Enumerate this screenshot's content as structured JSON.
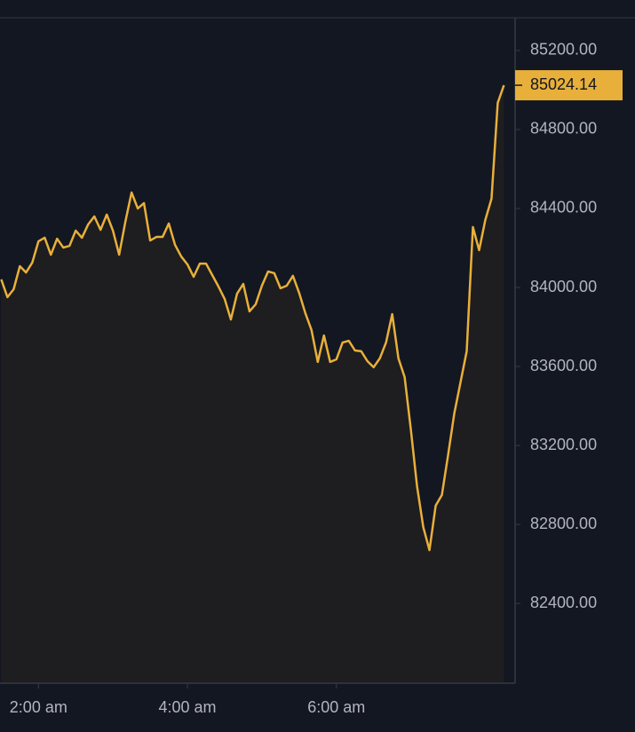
{
  "chart_data": {
    "type": "line",
    "color": "#e8b03a",
    "x": [
      90,
      95,
      100,
      105,
      110,
      115,
      120,
      125,
      130,
      135,
      140,
      145,
      150,
      155,
      160,
      165,
      170,
      175,
      180,
      185,
      190,
      195,
      200,
      205,
      210,
      215,
      220,
      225,
      230,
      235,
      240,
      245,
      250,
      255,
      260,
      265,
      270,
      275,
      280,
      285,
      290,
      295,
      300,
      305,
      310,
      315,
      320,
      325,
      330,
      335,
      340,
      345,
      350,
      355,
      360,
      365,
      370,
      375,
      380,
      385,
      390,
      395,
      400,
      405,
      410,
      415,
      420,
      425,
      430,
      435,
      440,
      445,
      450,
      455,
      460,
      465,
      470,
      475,
      480,
      485,
      490,
      495
    ],
    "values": [
      84041,
      83951,
      83991,
      84108,
      84076,
      84126,
      84234,
      84252,
      84166,
      84247,
      84202,
      84211,
      84288,
      84252,
      84319,
      84360,
      84292,
      84369,
      84288,
      84166,
      84333,
      84481,
      84400,
      84427,
      84238,
      84256,
      84256,
      84324,
      84216,
      84157,
      84117,
      84054,
      84121,
      84121,
      84063,
      84005,
      83942,
      83838,
      83969,
      84018,
      83879,
      83915,
      84009,
      84081,
      84072,
      83996,
      84009,
      84059,
      83973,
      83870,
      83784,
      83623,
      83757,
      83623,
      83636,
      83721,
      83730,
      83681,
      83677,
      83627,
      83596,
      83641,
      83721,
      83865,
      83641,
      83546,
      83281,
      82993,
      82787,
      82670,
      82895,
      82949,
      83151,
      83362,
      83519,
      83677,
      84306,
      84189,
      84342,
      84450,
      84935,
      85024.14
    ],
    "xlim": [
      89,
      504
    ],
    "ylim": [
      81996,
      85366
    ],
    "xticks": [
      {
        "value": 120,
        "label": "2:00 am"
      },
      {
        "value": 240,
        "label": "4:00 am"
      },
      {
        "value": 360,
        "label": "6:00 am"
      }
    ],
    "yticks": [
      {
        "value": 82400,
        "label": "82400.00"
      },
      {
        "value": 82800,
        "label": "82800.00"
      },
      {
        "value": 83200,
        "label": "83200.00"
      },
      {
        "value": 83600,
        "label": "83600.00"
      },
      {
        "value": 84000,
        "label": "84000.00"
      },
      {
        "value": 84400,
        "label": "84400.00"
      },
      {
        "value": 84800,
        "label": "84800.00"
      },
      {
        "value": 85200,
        "label": "85200.00"
      }
    ]
  }
}
